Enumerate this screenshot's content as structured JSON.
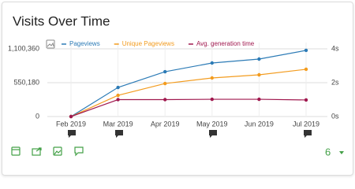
{
  "widget": {
    "title": "Visits Over Time"
  },
  "chart_data": {
    "type": "line",
    "categories": [
      "Feb 2019",
      "Mar 2019",
      "Apr 2019",
      "May 2019",
      "Jun 2019",
      "Jul 2019"
    ],
    "series": [
      {
        "name": "Pageviews",
        "color": "#2c7bb6",
        "values": [
          0,
          473000,
          729000,
          870000,
          934000,
          1075000
        ]
      },
      {
        "name": "Unique Pageviews",
        "color": "#f39c1f",
        "values": [
          0,
          345000,
          537000,
          627000,
          678000,
          768000
        ]
      },
      {
        "name": "Avg. generation time",
        "color": "#a0184e",
        "axis": "y2",
        "values": [
          0,
          1.0,
          1.0,
          1.02,
          1.02,
          0.98
        ]
      }
    ],
    "ylim": [
      0,
      1100360
    ],
    "yticks": [
      0,
      {
        "value": 550180,
        "label": "550,180"
      },
      {
        "value": 1100360,
        "label": "1,100,360"
      }
    ],
    "y2lim": [
      0,
      4
    ],
    "y2ticks": [
      {
        "value": 0,
        "label": "0s"
      },
      {
        "value": 2,
        "label": "2s"
      },
      {
        "value": 4,
        "label": "4s"
      }
    ],
    "grid": true
  },
  "footer": {
    "limit": "6"
  }
}
